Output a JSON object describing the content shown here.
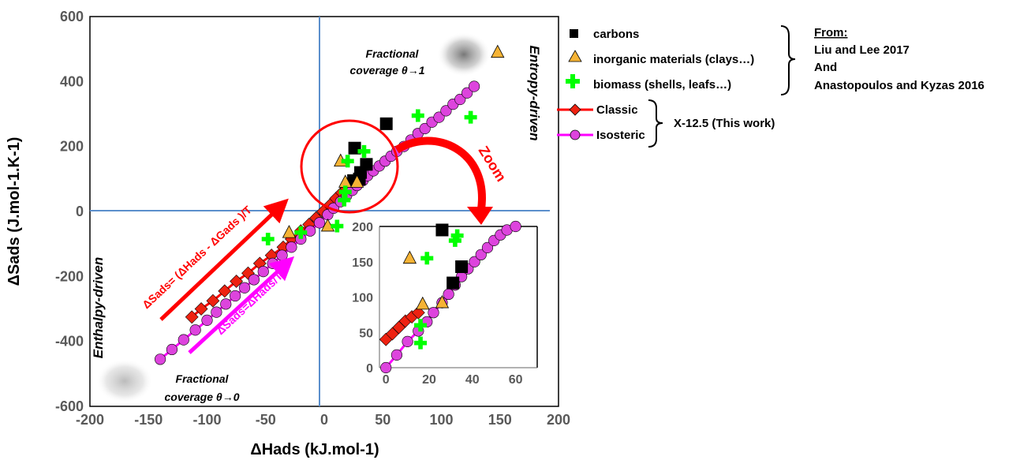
{
  "colors": {
    "carbons": "#000000",
    "inorganic": "#f5b335",
    "biomass": "#00ff00",
    "classic_line": "#ff0000",
    "classic_marker": "#ee2211",
    "isosteric_line": "#ff00ff",
    "isosteric_marker": "#dd44dd",
    "axes_lines": "#5b8fcc",
    "zoom": "#ff0000"
  },
  "legend": {
    "items": [
      {
        "label": "carbons",
        "icon": "black-square"
      },
      {
        "label": "inorganic materials (clays…)",
        "icon": "orange-triangle"
      },
      {
        "label": "biomass (shells, leafs…)",
        "icon": "green-cross"
      },
      {
        "label": "Classic",
        "icon": "red-line-diamond"
      },
      {
        "label": "Isosteric",
        "icon": "magenta-line-circle"
      }
    ],
    "source_heading": "From:",
    "source_lines": [
      "Liu and Lee 2017",
      "And",
      "Anastopoulos and Kyzas 2016"
    ],
    "this_work": "X-12.5 (This work)"
  },
  "annotations": {
    "frac1_line1": "Fractional",
    "frac1_line2": "coverage θ→1",
    "frac0_line1": "Fractional",
    "frac0_line2": "coverage θ→0",
    "entropy_driven": "Entropy-driven",
    "enthalpy_driven": "Enthalpy-driven",
    "zoom": "Zoom",
    "eq_classic": "ΔSads= (ΔHads - ΔGads )/T",
    "eq_isosteric": "ΔSads=ΔHads/T"
  },
  "chart_data": [
    {
      "type": "scatter",
      "title": "",
      "xlabel": "ΔHads (kJ.mol-1)",
      "ylabel": "ΔSads (J.mol-1.K-1)",
      "xlim": [
        -200,
        200
      ],
      "ylim": [
        -600,
        600
      ],
      "xticks": [
        "-200",
        "-150",
        "-100",
        "-50",
        "0",
        "50",
        "100",
        "150",
        "200"
      ],
      "yticks": [
        "600",
        "400",
        "200",
        "0",
        "-200",
        "-400",
        "-600"
      ],
      "grid": false,
      "legend_position": "right",
      "series": [
        {
          "name": "carbons",
          "marker": "square",
          "points": [
            [
              26,
              195
            ],
            [
              53,
              270
            ],
            [
              31,
              120
            ],
            [
              36,
              145
            ],
            [
              30,
              100
            ],
            [
              25,
              95
            ]
          ]
        },
        {
          "name": "inorganic materials (clays…)",
          "marker": "triangle",
          "points": [
            [
              148,
              490
            ],
            [
              14,
              155
            ],
            [
              18,
              90
            ],
            [
              28,
              90
            ],
            [
              3,
              -45
            ],
            [
              -30,
              -65
            ]
          ]
        },
        {
          "name": "biomass (shells, leafs…)",
          "marker": "cross",
          "points": [
            [
              34,
              185
            ],
            [
              20,
              155
            ],
            [
              80,
              295
            ],
            [
              125,
              290
            ],
            [
              18,
              60
            ],
            [
              17,
              35
            ],
            [
              11,
              -45
            ],
            [
              -48,
              -85
            ],
            [
              -20,
              -65
            ]
          ]
        },
        {
          "name": "Classic",
          "marker": "diamond",
          "line": true,
          "points": [
            [
              -113,
              -325
            ],
            [
              -105,
              -300
            ],
            [
              -95,
              -275
            ],
            [
              -85,
              -245
            ],
            [
              -75,
              -215
            ],
            [
              -65,
              -190
            ],
            [
              -55,
              -160
            ],
            [
              -45,
              -135
            ],
            [
              -35,
              -110
            ],
            [
              -28,
              -85
            ],
            [
              -20,
              -60
            ],
            [
              -13,
              -40
            ],
            [
              -7,
              -20
            ],
            [
              -1,
              0
            ],
            [
              5,
              20
            ],
            [
              10,
              40
            ],
            [
              15,
              58
            ],
            [
              19,
              70
            ],
            [
              23,
              80
            ]
          ]
        },
        {
          "name": "Isosteric",
          "marker": "circle",
          "line": true,
          "points": [
            [
              -140,
              -455
            ],
            [
              -130,
              -425
            ],
            [
              -120,
              -395
            ],
            [
              -110,
              -365
            ],
            [
              -100,
              -335
            ],
            [
              -92,
              -310
            ],
            [
              -84,
              -285
            ],
            [
              -76,
              -260
            ],
            [
              -68,
              -235
            ],
            [
              -60,
              -210
            ],
            [
              -52,
              -185
            ],
            [
              -44,
              -160
            ],
            [
              -36,
              -135
            ],
            [
              -28,
              -110
            ],
            [
              -20,
              -85
            ],
            [
              -12,
              -60
            ],
            [
              -4,
              -35
            ],
            [
              3,
              -10
            ],
            [
              8,
              10
            ],
            [
              14,
              30
            ],
            [
              19,
              48
            ],
            [
              24,
              65
            ],
            [
              28,
              80
            ],
            [
              33,
              95
            ],
            [
              37,
              110
            ],
            [
              42,
              125
            ],
            [
              47,
              140
            ],
            [
              52,
              155
            ],
            [
              57,
              170
            ],
            [
              62,
              185
            ],
            [
              68,
              200
            ],
            [
              74,
              220
            ],
            [
              80,
              240
            ],
            [
              86,
              255
            ],
            [
              92,
              275
            ],
            [
              98,
              290
            ],
            [
              104,
              310
            ],
            [
              110,
              330
            ],
            [
              116,
              345
            ],
            [
              122,
              365
            ],
            [
              128,
              385
            ]
          ]
        }
      ]
    },
    {
      "type": "scatter",
      "title": "",
      "xlabel": "",
      "ylabel": "",
      "xlim": [
        -3,
        70
      ],
      "ylim": [
        0,
        200
      ],
      "xticks": [
        "0",
        "20",
        "40",
        "60"
      ],
      "yticks": [
        "200",
        "150",
        "100",
        "50",
        "0"
      ],
      "grid": false,
      "series": [
        {
          "name": "carbons",
          "marker": "square",
          "points": [
            [
              26,
              195
            ],
            [
              31,
              120
            ],
            [
              35,
              143
            ]
          ]
        },
        {
          "name": "inorganic materials (clays…)",
          "marker": "triangle",
          "points": [
            [
              11,
              155
            ],
            [
              17,
              90
            ],
            [
              26,
              92
            ]
          ]
        },
        {
          "name": "biomass (shells, leafs…)",
          "marker": "cross",
          "points": [
            [
              33,
              187
            ],
            [
              32,
              180
            ],
            [
              19,
              155
            ],
            [
              16,
              60
            ],
            [
              16,
              35
            ]
          ]
        },
        {
          "name": "Classic",
          "marker": "diamond",
          "line": true,
          "points": [
            [
              0,
              40
            ],
            [
              3,
              48
            ],
            [
              6,
              57
            ],
            [
              9,
              66
            ],
            [
              12,
              72
            ],
            [
              15,
              78
            ]
          ]
        },
        {
          "name": "Isosteric",
          "marker": "circle",
          "line": true,
          "points": [
            [
              0,
              0
            ],
            [
              5,
              18
            ],
            [
              10,
              37
            ],
            [
              15,
              52
            ],
            [
              19,
              65
            ],
            [
              22,
              78
            ],
            [
              26,
              92
            ],
            [
              29,
              104
            ],
            [
              32,
              117
            ],
            [
              35,
              129
            ],
            [
              38,
              140
            ],
            [
              41,
              150
            ],
            [
              44,
              160
            ],
            [
              47,
              170
            ],
            [
              50,
              180
            ],
            [
              53,
              188
            ],
            [
              56,
              195
            ],
            [
              60,
              200
            ]
          ]
        }
      ]
    }
  ]
}
